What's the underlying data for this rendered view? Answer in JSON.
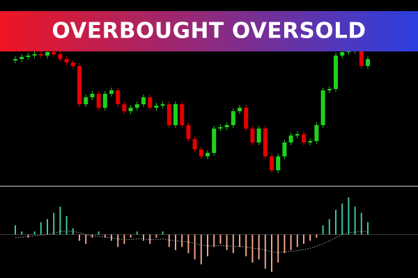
{
  "chart_data": [
    {
      "type": "candlestick",
      "title": "OVERBOUGHT OVERSOLD",
      "up_color": "#1ed21e",
      "down_color": "#e60000",
      "ylim": [
        0,
        265
      ],
      "open": [
        178,
        180,
        183,
        185,
        187,
        185,
        190,
        187,
        180,
        175,
        170,
        115,
        125,
        130,
        110,
        130,
        135,
        115,
        105,
        110,
        115,
        125,
        110,
        113,
        115,
        85,
        115,
        85,
        65,
        50,
        40,
        45,
        80,
        82,
        85,
        105,
        110,
        80,
        60,
        80,
        40,
        20,
        40,
        60,
        70,
        72,
        60,
        62,
        85,
        135,
        137,
        185,
        190,
        192,
        195,
        170
      ],
      "high": [
        184,
        187,
        189,
        191,
        191,
        194,
        194,
        191,
        184,
        179,
        174,
        129,
        134,
        134,
        134,
        139,
        139,
        119,
        114,
        119,
        129,
        129,
        117,
        119,
        119,
        119,
        119,
        89,
        69,
        54,
        49,
        84,
        86,
        89,
        109,
        114,
        114,
        84,
        84,
        84,
        44,
        44,
        64,
        74,
        76,
        76,
        66,
        89,
        139,
        141,
        189,
        194,
        196,
        199,
        199,
        184
      ],
      "low": [
        174,
        176,
        179,
        181,
        181,
        181,
        183,
        176,
        171,
        166,
        111,
        111,
        121,
        106,
        106,
        126,
        111,
        101,
        101,
        106,
        111,
        106,
        106,
        109,
        81,
        81,
        81,
        61,
        46,
        36,
        36,
        41,
        76,
        78,
        81,
        101,
        76,
        56,
        56,
        36,
        16,
        16,
        36,
        56,
        66,
        56,
        56,
        58,
        81,
        131,
        133,
        181,
        186,
        188,
        166,
        166
      ],
      "close": [
        180,
        183,
        185,
        187,
        185,
        190,
        187,
        180,
        175,
        170,
        115,
        125,
        130,
        110,
        130,
        135,
        115,
        105,
        110,
        115,
        125,
        110,
        113,
        115,
        85,
        115,
        85,
        65,
        50,
        40,
        45,
        80,
        82,
        85,
        105,
        110,
        80,
        60,
        80,
        40,
        20,
        40,
        60,
        70,
        72,
        60,
        62,
        85,
        135,
        137,
        185,
        190,
        192,
        195,
        170,
        180
      ]
    },
    {
      "type": "bar",
      "positive_color": "#3cc8a0",
      "negative_color": "#f3a388",
      "line_color": "#b0b0b0",
      "ylim": [
        -70,
        70
      ],
      "values": [
        15,
        5,
        -5,
        5,
        20,
        25,
        35,
        45,
        30,
        10,
        -10,
        -15,
        -5,
        5,
        -5,
        -10,
        -20,
        -15,
        -5,
        5,
        -10,
        -15,
        -5,
        5,
        -20,
        -25,
        -20,
        -30,
        -40,
        -48,
        -35,
        -20,
        -15,
        -25,
        -30,
        -20,
        -35,
        -45,
        -40,
        -55,
        -60,
        -45,
        -30,
        -25,
        -20,
        -15,
        -10,
        -5,
        15,
        25,
        40,
        50,
        60,
        45,
        35,
        20
      ],
      "line_values": [
        -5,
        -4,
        -3,
        -2,
        -1,
        0,
        2,
        5,
        6,
        5,
        3,
        0,
        -2,
        -3,
        -4,
        -5,
        -7,
        -8,
        -8,
        -7,
        -7,
        -8,
        -8,
        -7,
        -9,
        -10,
        -11,
        -12,
        -14,
        -17,
        -18,
        -18,
        -18,
        -18,
        -19,
        -19,
        -20,
        -22,
        -23,
        -25,
        -28,
        -29,
        -28,
        -27,
        -26,
        -24,
        -22,
        -19,
        -15,
        -10,
        -5,
        0,
        3,
        4,
        5,
        5
      ]
    }
  ]
}
